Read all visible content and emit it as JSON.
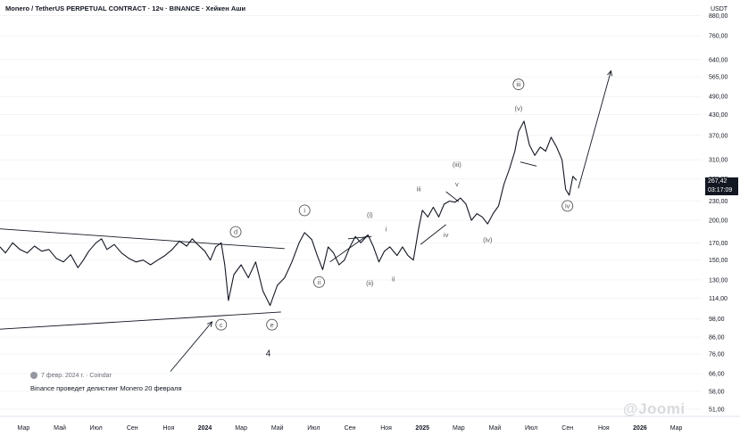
{
  "header": {
    "title": "Monero / TetherUS PERPETUAL CONTRACT · 12ч · BINANCE · Хейкен Аши",
    "currency": "USDT"
  },
  "price_badge": {
    "price": "267,42",
    "timer": "03:17:09"
  },
  "news": {
    "date_source": "7 февр. 2024 г. · Coindar",
    "headline": "Binance проведет делистинг Monero 20 февраля",
    "icon": "person-icon"
  },
  "watermark": "@Joomi",
  "chart_data": {
    "type": "line",
    "title": "Monero / TetherUS PERPETUAL CONTRACT · 12ч · BINANCE · Хейкен Аши",
    "y_scale": "log",
    "ylim": [
      50,
      900
    ],
    "y_ticks": [
      880,
      760,
      640,
      565,
      490,
      430,
      370,
      310,
      270,
      230,
      200,
      170,
      150,
      130,
      114,
      98,
      86,
      76,
      66,
      58,
      51
    ],
    "y_tick_labels": [
      "880,00",
      "760,00",
      "640,00",
      "565,00",
      "490,00",
      "430,00",
      "370,00",
      "310,00",
      "270,00",
      "230,00",
      "200,00",
      "170,00",
      "150,00",
      "130,00",
      "114,00",
      "98,00",
      "86,00",
      "76,00",
      "66,00",
      "58,00",
      "51,00"
    ],
    "x_tick_labels": [
      "Мар",
      "Май",
      "Июл",
      "Сен",
      "Ноя",
      "2024",
      "Мар",
      "Май",
      "Июл",
      "Сен",
      "Ноя",
      "2025",
      "Мар",
      "Май",
      "Июл",
      "Сен",
      "Ноя",
      "2026",
      "Мар"
    ],
    "x_tick_months": [
      0,
      2,
      4,
      6,
      8,
      10,
      12,
      14,
      16,
      18,
      20,
      22,
      24,
      26,
      28,
      30,
      32,
      34,
      36
    ],
    "x_range_months": [
      -1.3,
      37.4
    ],
    "series": [
      {
        "values": [
          [
            -1.3,
            165
          ],
          [
            -1.0,
            158
          ],
          [
            -0.6,
            170
          ],
          [
            -0.2,
            162
          ],
          [
            0.2,
            158
          ],
          [
            0.6,
            166
          ],
          [
            1.0,
            160
          ],
          [
            1.4,
            162
          ],
          [
            1.8,
            152
          ],
          [
            2.2,
            148
          ],
          [
            2.6,
            156
          ],
          [
            3.0,
            142
          ],
          [
            3.3,
            150
          ],
          [
            3.6,
            160
          ],
          [
            4.0,
            170
          ],
          [
            4.3,
            175
          ],
          [
            4.6,
            162
          ],
          [
            5.0,
            168
          ],
          [
            5.4,
            158
          ],
          [
            5.8,
            152
          ],
          [
            6.2,
            148
          ],
          [
            6.6,
            150
          ],
          [
            7.0,
            145
          ],
          [
            7.4,
            150
          ],
          [
            7.8,
            155
          ],
          [
            8.2,
            162
          ],
          [
            8.6,
            172
          ],
          [
            9.0,
            166
          ],
          [
            9.3,
            175
          ],
          [
            9.6,
            168
          ],
          [
            10.0,
            160
          ],
          [
            10.3,
            150
          ],
          [
            10.6,
            165
          ],
          [
            10.9,
            170
          ],
          [
            11.1,
            145
          ],
          [
            11.3,
            112
          ],
          [
            11.6,
            135
          ],
          [
            12.0,
            145
          ],
          [
            12.4,
            132
          ],
          [
            12.8,
            148
          ],
          [
            13.2,
            120
          ],
          [
            13.6,
            108
          ],
          [
            14.0,
            125
          ],
          [
            14.4,
            132
          ],
          [
            14.8,
            148
          ],
          [
            15.2,
            170
          ],
          [
            15.5,
            183
          ],
          [
            15.9,
            174
          ],
          [
            16.2,
            155
          ],
          [
            16.5,
            140
          ],
          [
            16.8,
            165
          ],
          [
            17.1,
            158
          ],
          [
            17.4,
            145
          ],
          [
            17.7,
            150
          ],
          [
            18.0,
            165
          ],
          [
            18.3,
            178
          ],
          [
            18.6,
            170
          ],
          [
            19.0,
            180
          ],
          [
            19.3,
            165
          ],
          [
            19.6,
            148
          ],
          [
            19.9,
            160
          ],
          [
            20.2,
            165
          ],
          [
            20.6,
            155
          ],
          [
            20.9,
            165
          ],
          [
            21.2,
            155
          ],
          [
            21.5,
            150
          ],
          [
            21.8,
            190
          ],
          [
            22.0,
            215
          ],
          [
            22.3,
            205
          ],
          [
            22.6,
            220
          ],
          [
            22.9,
            205
          ],
          [
            23.2,
            225
          ],
          [
            23.5,
            230
          ],
          [
            23.8,
            228
          ],
          [
            24.1,
            235
          ],
          [
            24.4,
            225
          ],
          [
            24.7,
            200
          ],
          [
            25.0,
            210
          ],
          [
            25.3,
            205
          ],
          [
            25.6,
            195
          ],
          [
            25.9,
            210
          ],
          [
            26.2,
            222
          ],
          [
            26.5,
            260
          ],
          [
            26.8,
            290
          ],
          [
            27.1,
            330
          ],
          [
            27.3,
            380
          ],
          [
            27.6,
            410
          ],
          [
            27.9,
            345
          ],
          [
            28.2,
            320
          ],
          [
            28.5,
            340
          ],
          [
            28.8,
            330
          ],
          [
            29.1,
            365
          ],
          [
            29.4,
            340
          ],
          [
            29.7,
            310
          ],
          [
            29.9,
            250
          ],
          [
            30.1,
            240
          ],
          [
            30.3,
            275
          ],
          [
            30.5,
            267
          ]
        ]
      }
    ],
    "annotations": [
      {
        "label": "d",
        "x": 11.7,
        "y": 184,
        "circled": true
      },
      {
        "label": "c",
        "x": 10.9,
        "y": 94,
        "circled": true
      },
      {
        "label": "e",
        "x": 13.7,
        "y": 94,
        "circled": true
      },
      {
        "label": "4",
        "x": 13.5,
        "y": 76,
        "circled": false
      },
      {
        "label": "i",
        "x": 15.5,
        "y": 215,
        "circled": true
      },
      {
        "label": "ii",
        "x": 16.3,
        "y": 128,
        "circled": true
      },
      {
        "label": "(i)",
        "x": 19.1,
        "y": 208,
        "circled": false
      },
      {
        "label": "(ii)",
        "x": 19.1,
        "y": 127,
        "circled": false
      },
      {
        "label": "i",
        "x": 20.0,
        "y": 188,
        "circled": false
      },
      {
        "label": "ii",
        "x": 20.4,
        "y": 131,
        "circled": false
      },
      {
        "label": "iii",
        "x": 21.8,
        "y": 251,
        "circled": false
      },
      {
        "label": "v",
        "x": 23.9,
        "y": 260,
        "circled": false
      },
      {
        "label": "(iii)",
        "x": 23.9,
        "y": 300,
        "circled": false
      },
      {
        "label": "iv",
        "x": 23.3,
        "y": 180,
        "circled": false
      },
      {
        "label": "(iv)",
        "x": 25.6,
        "y": 174,
        "circled": false
      },
      {
        "label": "iii",
        "x": 27.3,
        "y": 535,
        "circled": true
      },
      {
        "label": "(v)",
        "x": 27.3,
        "y": 450,
        "circled": false
      },
      {
        "label": "iv",
        "x": 30.0,
        "y": 222,
        "circled": true
      }
    ]
  }
}
